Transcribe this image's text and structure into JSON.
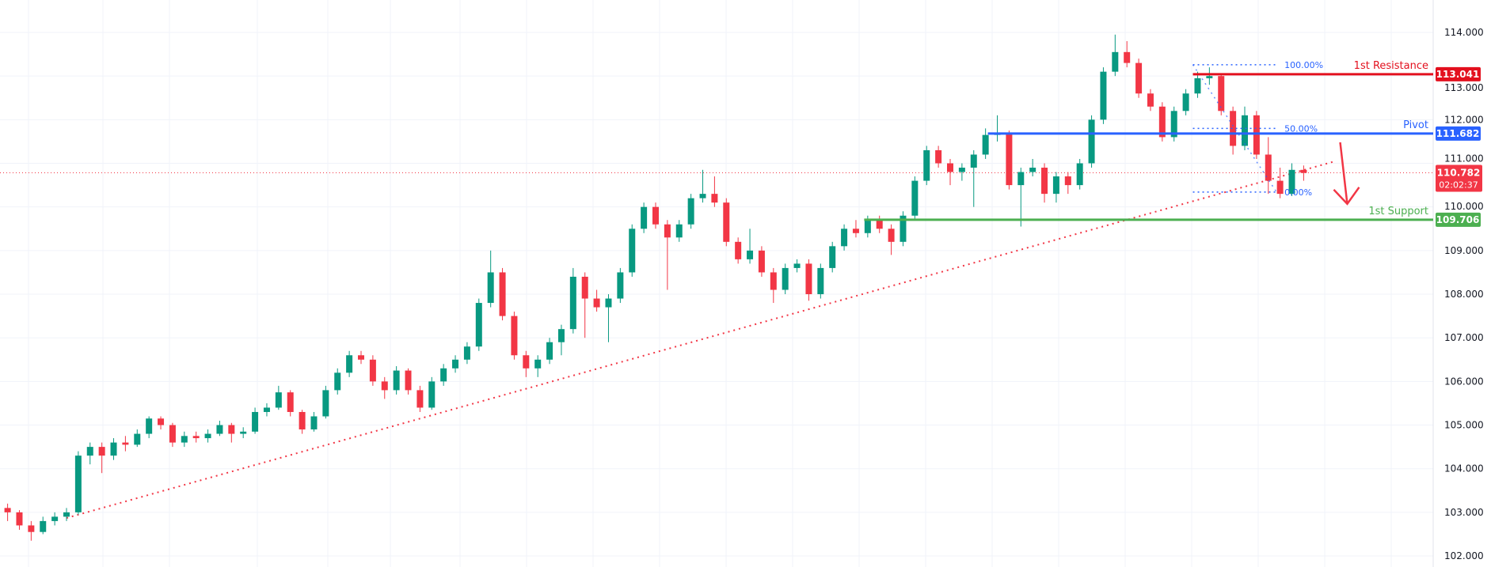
{
  "chart_data": {
    "type": "candlestick",
    "title": "",
    "xlabel": "",
    "ylabel": "",
    "ylim": [
      101.75,
      114.74
    ],
    "y_ticks": [
      "102.000",
      "103.000",
      "104.000",
      "105.000",
      "106.000",
      "107.000",
      "108.000",
      "109.000",
      "110.000",
      "111.000",
      "112.000",
      "113.000",
      "114.000"
    ],
    "grid": true,
    "colors": {
      "up": "#089981",
      "down": "#F23645",
      "resistance": "#E3101E",
      "pivot": "#2962FF",
      "support": "#4CAF50",
      "trendline": "#F23645",
      "fib": "#2962FF",
      "arrow": "#F23645",
      "grid": "#F0F3FA",
      "last_price": "#F23645"
    },
    "ohlc": [
      [
        103.1,
        103.2,
        102.8,
        103.0
      ],
      [
        103.0,
        103.05,
        102.6,
        102.7
      ],
      [
        102.7,
        102.8,
        102.35,
        102.55
      ],
      [
        102.55,
        102.9,
        102.5,
        102.8
      ],
      [
        102.8,
        103.0,
        102.7,
        102.9
      ],
      [
        102.9,
        103.1,
        102.8,
        103.0
      ],
      [
        103.0,
        104.4,
        102.95,
        104.3
      ],
      [
        104.3,
        104.6,
        104.1,
        104.5
      ],
      [
        104.5,
        104.6,
        103.9,
        104.3
      ],
      [
        104.3,
        104.7,
        104.2,
        104.6
      ],
      [
        104.6,
        104.75,
        104.4,
        104.55
      ],
      [
        104.55,
        104.9,
        104.5,
        104.8
      ],
      [
        104.8,
        105.2,
        104.7,
        105.15
      ],
      [
        105.15,
        105.2,
        104.9,
        105.0
      ],
      [
        105.0,
        105.05,
        104.5,
        104.6
      ],
      [
        104.6,
        104.85,
        104.5,
        104.75
      ],
      [
        104.75,
        104.85,
        104.6,
        104.7
      ],
      [
        104.7,
        104.9,
        104.6,
        104.8
      ],
      [
        104.8,
        105.1,
        104.75,
        105.0
      ],
      [
        105.0,
        105.05,
        104.6,
        104.8
      ],
      [
        104.8,
        104.95,
        104.7,
        104.85
      ],
      [
        104.85,
        105.4,
        104.8,
        105.3
      ],
      [
        105.3,
        105.5,
        105.2,
        105.4
      ],
      [
        105.4,
        105.9,
        105.35,
        105.75
      ],
      [
        105.75,
        105.8,
        105.2,
        105.3
      ],
      [
        105.3,
        105.35,
        104.8,
        104.9
      ],
      [
        104.9,
        105.3,
        104.85,
        105.2
      ],
      [
        105.2,
        105.9,
        105.15,
        105.8
      ],
      [
        105.8,
        106.3,
        105.7,
        106.2
      ],
      [
        106.2,
        106.7,
        106.1,
        106.6
      ],
      [
        106.6,
        106.7,
        106.4,
        106.5
      ],
      [
        106.5,
        106.6,
        105.9,
        106.0
      ],
      [
        106.0,
        106.1,
        105.6,
        105.8
      ],
      [
        105.8,
        106.35,
        105.7,
        106.25
      ],
      [
        106.25,
        106.3,
        105.7,
        105.8
      ],
      [
        105.8,
        105.9,
        105.3,
        105.4
      ],
      [
        105.4,
        106.1,
        105.35,
        106.0
      ],
      [
        106.0,
        106.4,
        105.9,
        106.3
      ],
      [
        106.3,
        106.6,
        106.2,
        106.5
      ],
      [
        106.5,
        106.9,
        106.4,
        106.8
      ],
      [
        106.8,
        107.9,
        106.7,
        107.8
      ],
      [
        107.8,
        109.0,
        107.7,
        108.5
      ],
      [
        108.5,
        108.6,
        107.4,
        107.5
      ],
      [
        107.5,
        107.6,
        106.5,
        106.6
      ],
      [
        106.6,
        106.7,
        106.1,
        106.3
      ],
      [
        106.3,
        106.6,
        106.1,
        106.5
      ],
      [
        106.5,
        107.0,
        106.4,
        106.9
      ],
      [
        106.9,
        107.3,
        106.6,
        107.2
      ],
      [
        107.2,
        108.6,
        107.1,
        108.4
      ],
      [
        108.4,
        108.5,
        107.0,
        107.9
      ],
      [
        107.9,
        108.1,
        107.6,
        107.7
      ],
      [
        107.7,
        108.0,
        106.9,
        107.9
      ],
      [
        107.9,
        108.6,
        107.8,
        108.5
      ],
      [
        108.5,
        109.6,
        108.4,
        109.5
      ],
      [
        109.5,
        110.1,
        109.4,
        110.0
      ],
      [
        110.0,
        110.1,
        109.5,
        109.6
      ],
      [
        109.6,
        109.7,
        108.1,
        109.3
      ],
      [
        109.3,
        109.7,
        109.2,
        109.6
      ],
      [
        109.6,
        110.3,
        109.5,
        110.2
      ],
      [
        110.2,
        110.85,
        110.1,
        110.3
      ],
      [
        110.3,
        110.7,
        110.0,
        110.1
      ],
      [
        110.1,
        110.2,
        109.1,
        109.2
      ],
      [
        109.2,
        109.3,
        108.7,
        108.8
      ],
      [
        108.8,
        109.5,
        108.7,
        109.0
      ],
      [
        109.0,
        109.1,
        108.4,
        108.5
      ],
      [
        108.5,
        108.6,
        107.8,
        108.1
      ],
      [
        108.1,
        108.7,
        108.0,
        108.6
      ],
      [
        108.6,
        108.8,
        108.5,
        108.7
      ],
      [
        108.7,
        108.8,
        107.85,
        108.0
      ],
      [
        108.0,
        108.7,
        107.9,
        108.6
      ],
      [
        108.6,
        109.2,
        108.5,
        109.1
      ],
      [
        109.1,
        109.6,
        109.0,
        109.5
      ],
      [
        109.5,
        109.7,
        109.3,
        109.4
      ],
      [
        109.4,
        109.8,
        109.3,
        109.7
      ],
      [
        109.7,
        109.8,
        109.4,
        109.5
      ],
      [
        109.5,
        109.6,
        108.9,
        109.2
      ],
      [
        109.2,
        109.9,
        109.1,
        109.8
      ],
      [
        109.8,
        110.7,
        109.7,
        110.6
      ],
      [
        110.6,
        111.4,
        110.5,
        111.3
      ],
      [
        111.3,
        111.4,
        110.9,
        111.0
      ],
      [
        111.0,
        111.1,
        110.5,
        110.8
      ],
      [
        110.8,
        111.0,
        110.6,
        110.9
      ],
      [
        110.9,
        111.3,
        110.0,
        111.2
      ],
      [
        111.2,
        111.8,
        111.1,
        111.65
      ],
      [
        111.65,
        112.1,
        111.5,
        111.7
      ],
      [
        111.7,
        111.75,
        110.4,
        110.5
      ],
      [
        110.5,
        110.9,
        109.55,
        110.8
      ],
      [
        110.8,
        111.1,
        110.7,
        110.9
      ],
      [
        110.9,
        111.0,
        110.1,
        110.3
      ],
      [
        110.3,
        110.8,
        110.1,
        110.7
      ],
      [
        110.7,
        110.8,
        110.3,
        110.5
      ],
      [
        110.5,
        111.1,
        110.4,
        111.0
      ],
      [
        111.0,
        112.1,
        110.9,
        112.0
      ],
      [
        112.0,
        113.2,
        111.9,
        113.1
      ],
      [
        113.1,
        113.95,
        113.0,
        113.55
      ],
      [
        113.55,
        113.8,
        113.2,
        113.3
      ],
      [
        113.3,
        113.4,
        112.5,
        112.6
      ],
      [
        112.6,
        112.7,
        112.2,
        112.3
      ],
      [
        112.3,
        112.4,
        111.5,
        111.6
      ],
      [
        111.6,
        112.3,
        111.5,
        112.2
      ],
      [
        112.2,
        112.7,
        112.1,
        112.6
      ],
      [
        112.6,
        113.1,
        112.5,
        112.95
      ],
      [
        112.95,
        113.2,
        112.8,
        113.0
      ],
      [
        113.0,
        113.05,
        112.1,
        112.2
      ],
      [
        112.2,
        112.3,
        111.2,
        111.4
      ],
      [
        111.4,
        112.3,
        111.3,
        112.1
      ],
      [
        112.1,
        112.2,
        111.1,
        111.2
      ],
      [
        111.2,
        111.6,
        110.3,
        110.6
      ],
      [
        110.6,
        110.9,
        110.2,
        110.3
      ],
      [
        110.3,
        111.0,
        110.25,
        110.85
      ],
      [
        110.85,
        110.95,
        110.6,
        110.78
      ]
    ],
    "levels": [
      {
        "name": "resistance",
        "label": "1st Resistance",
        "price": 113.041,
        "price_label": "113.041",
        "from_bar": 100.6
      },
      {
        "name": "pivot",
        "label": "Pivot",
        "price": 111.682,
        "price_label": "111.682",
        "from_bar": 83.2
      },
      {
        "name": "support",
        "label": "1st Support",
        "price": 109.706,
        "price_label": "109.706",
        "from_bar": 72.7
      }
    ],
    "last_price": {
      "price": 110.782,
      "price_label": "110.782",
      "countdown": "02:02:37"
    },
    "fibonacci": {
      "from_bar": 100.6,
      "to_bar": 107.7,
      "levels": [
        {
          "label": "100.00%",
          "price": 113.26
        },
        {
          "label": "50.00%",
          "price": 111.8
        },
        {
          "label": "0.00%",
          "price": 110.34
        }
      ]
    },
    "trendline": {
      "style": "dotted",
      "points": [
        [
          5,
          102.87
        ],
        [
          112.7,
          111.05
        ]
      ]
    },
    "arrow": {
      "direction": "down",
      "from": [
        113.1,
        111.48
      ],
      "to": [
        113.7,
        110.07
      ]
    }
  }
}
